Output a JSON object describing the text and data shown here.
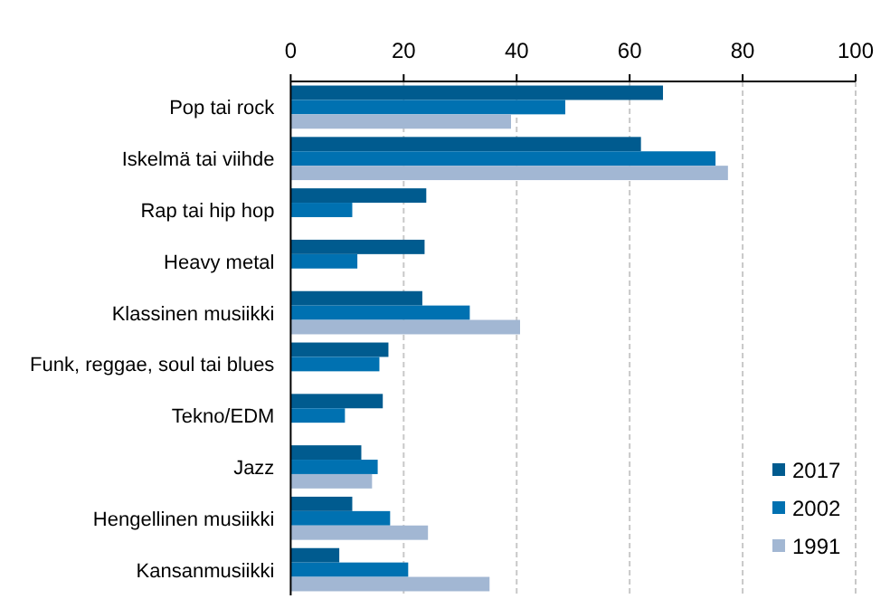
{
  "chart_data": {
    "type": "bar",
    "orientation": "horizontal",
    "categories": [
      "Pop tai rock",
      "Iskelmä tai viihde",
      "Rap tai hip hop",
      "Heavy metal",
      "Klassinen musiikki",
      "Funk, reggae, soul tai blues",
      "Tekno/EDM",
      "Jazz",
      "Hengellinen musiikki",
      "Kansanmusiikki"
    ],
    "series": [
      {
        "name": "2017",
        "color": "#005b8f",
        "values": [
          65.9,
          62.0,
          24.0,
          23.7,
          23.3,
          17.3,
          16.3,
          12.5,
          10.9,
          8.6
        ]
      },
      {
        "name": "2002",
        "color": "#0071b1",
        "values": [
          48.6,
          75.2,
          10.9,
          11.8,
          31.7,
          15.7,
          9.6,
          15.4,
          17.6,
          20.8
        ]
      },
      {
        "name": "1991",
        "color": "#a2b7d3",
        "values": [
          39.0,
          77.4,
          null,
          null,
          40.6,
          null,
          null,
          14.4,
          24.3,
          35.2
        ]
      }
    ],
    "xlim": [
      0,
      100
    ],
    "xticks": [
      0,
      20,
      40,
      60,
      80,
      100
    ],
    "grid": "x",
    "legend": "bottom right"
  }
}
